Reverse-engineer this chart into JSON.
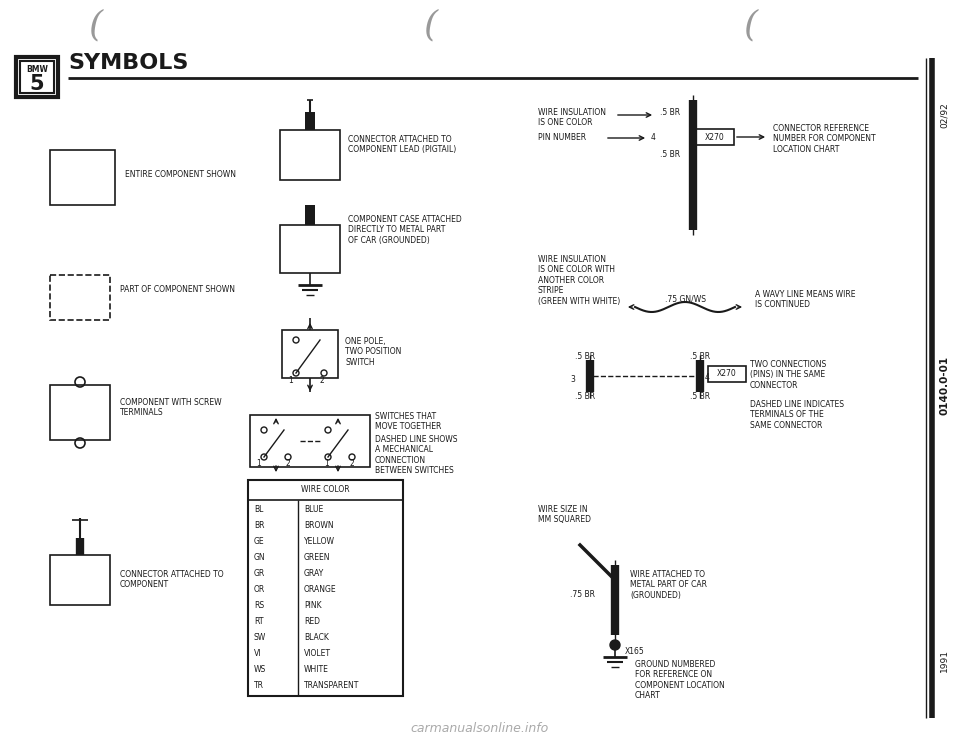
{
  "title": "SYMBOLS",
  "bg_color": "#ffffff",
  "text_color": "#1a1a1a",
  "wire_color_table": {
    "header": "WIRE COLOR",
    "rows": [
      [
        "BL",
        "BLUE"
      ],
      [
        "BR",
        "BROWN"
      ],
      [
        "GE",
        "YELLOW"
      ],
      [
        "GN",
        "GREEN"
      ],
      [
        "GR",
        "GRAY"
      ],
      [
        "OR",
        "ORANGE"
      ],
      [
        "RS",
        "PINK"
      ],
      [
        "RT",
        "RED"
      ],
      [
        "SW",
        "BLACK"
      ],
      [
        "VI",
        "VIOLET"
      ],
      [
        "WS",
        "WHITE"
      ],
      [
        "TR",
        "TRANSPARENT"
      ]
    ]
  },
  "side_text_top": "02/92",
  "side_text_mid": "0140.0-01",
  "side_text_bot": "1991",
  "watermark": "carmanualsonline.info"
}
